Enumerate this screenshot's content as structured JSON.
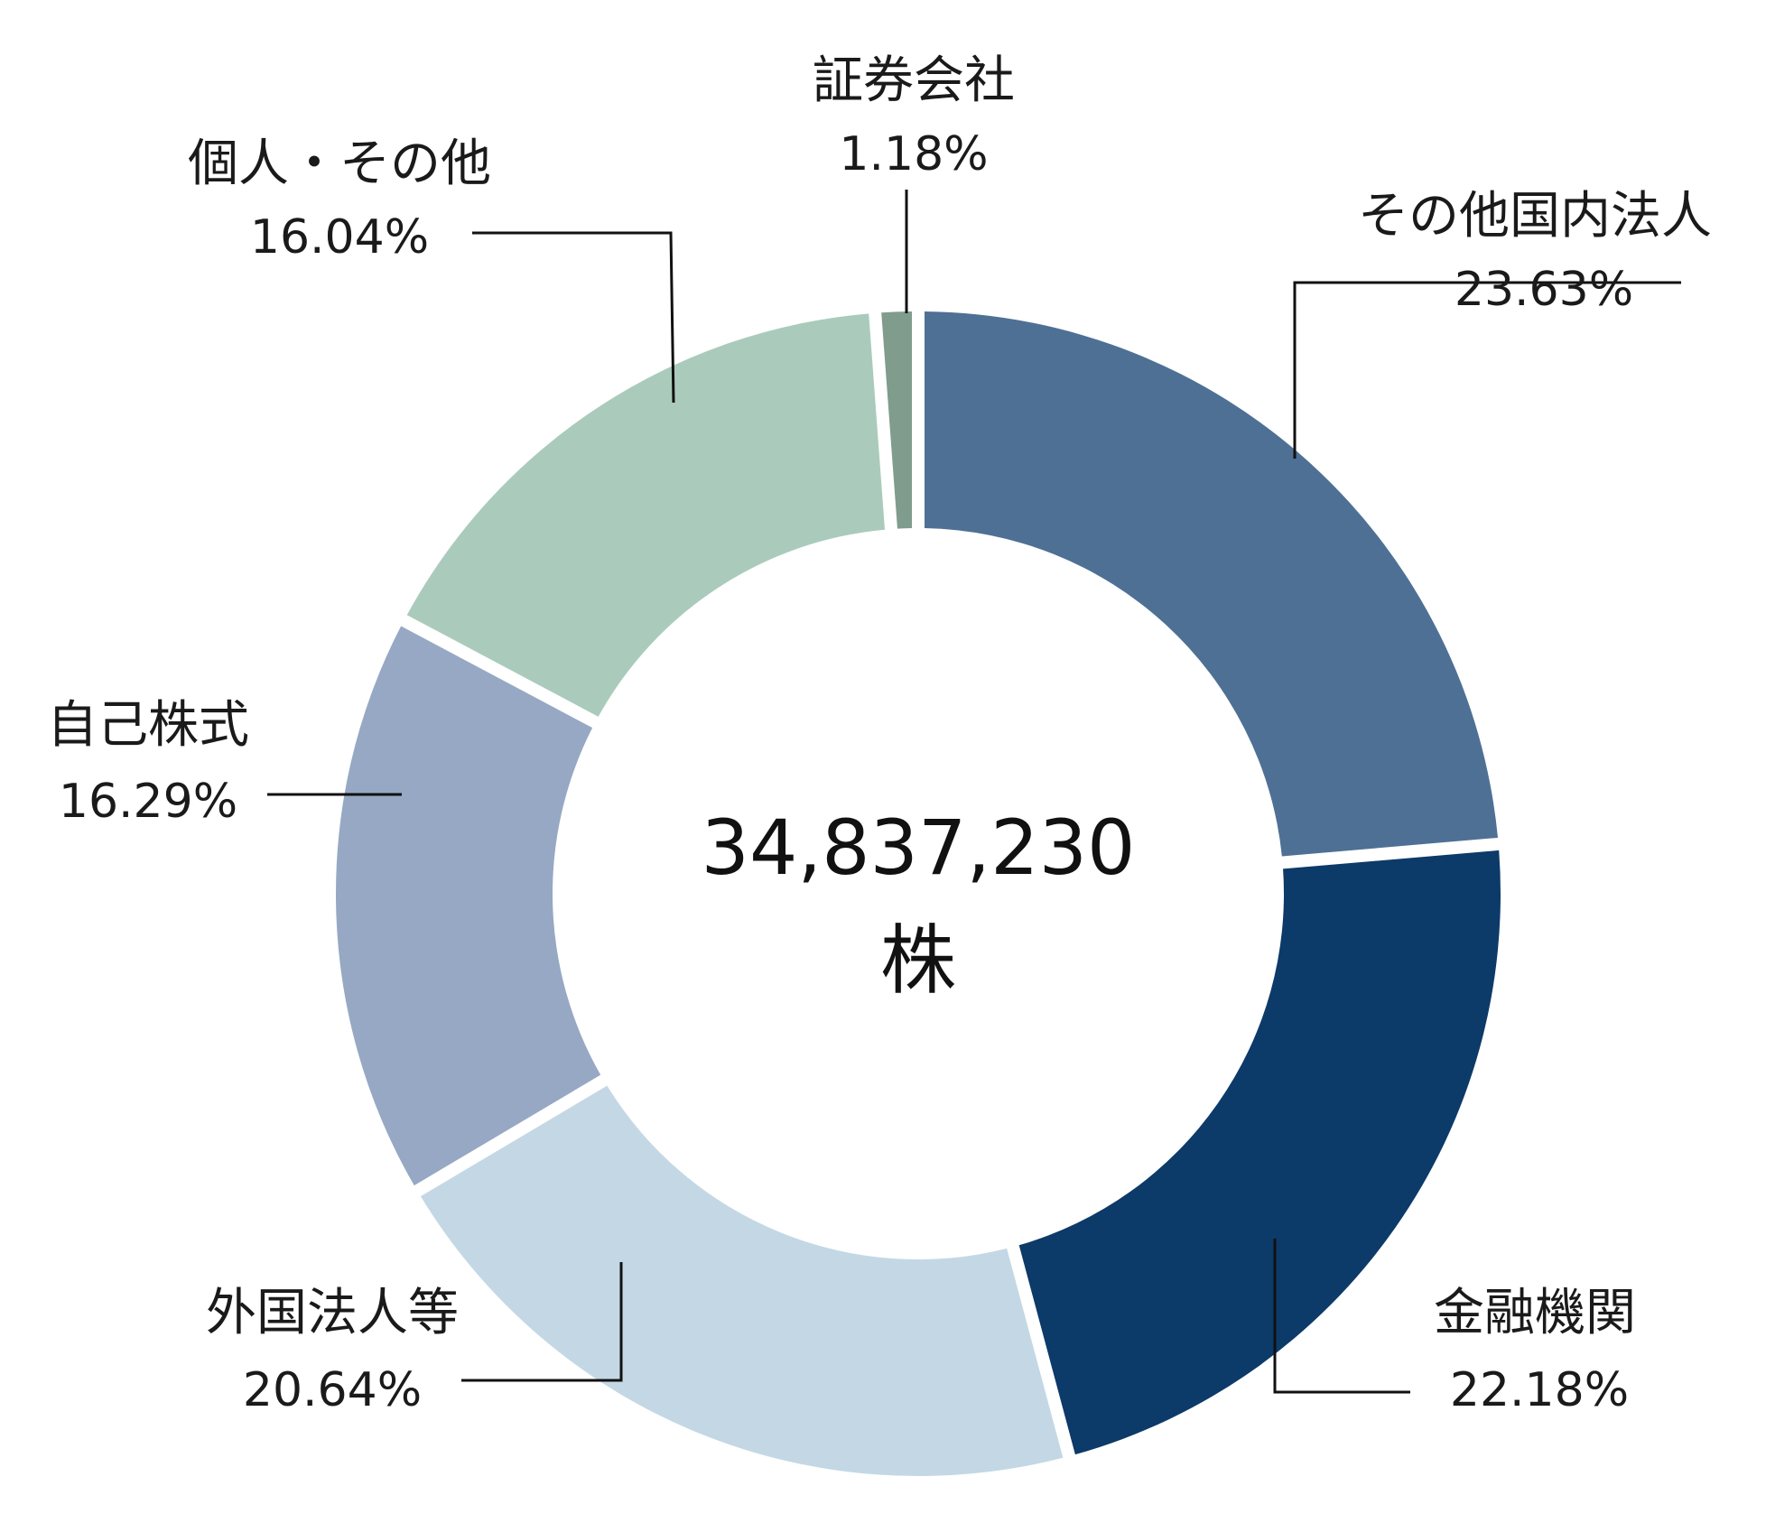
{
  "chart_data": {
    "type": "pie",
    "donut": true,
    "center_label": {
      "value": "34,837,230",
      "unit": "株"
    },
    "slices": [
      {
        "label": "その他国内法人",
        "value": 23.63,
        "display": "23.63%",
        "color": "#4f7095"
      },
      {
        "label": "金融機関",
        "value": 22.18,
        "display": "22.18%",
        "color": "#0c3a69"
      },
      {
        "label": "外国法人等",
        "value": 20.64,
        "display": "20.64%",
        "color": "#c3d8e4"
      },
      {
        "label": "自己株式",
        "value": 16.29,
        "display": "16.29%",
        "color": "#96a8c3"
      },
      {
        "label": "個人・その他",
        "value": 16.04,
        "display": "16.04%",
        "color": "#aacbbc"
      },
      {
        "label": "証券会社",
        "value": 1.18,
        "display": "1.18%",
        "color": "#7f9c8d"
      }
    ],
    "start_angle_deg": 0,
    "direction": "clockwise",
    "legend": "none"
  }
}
